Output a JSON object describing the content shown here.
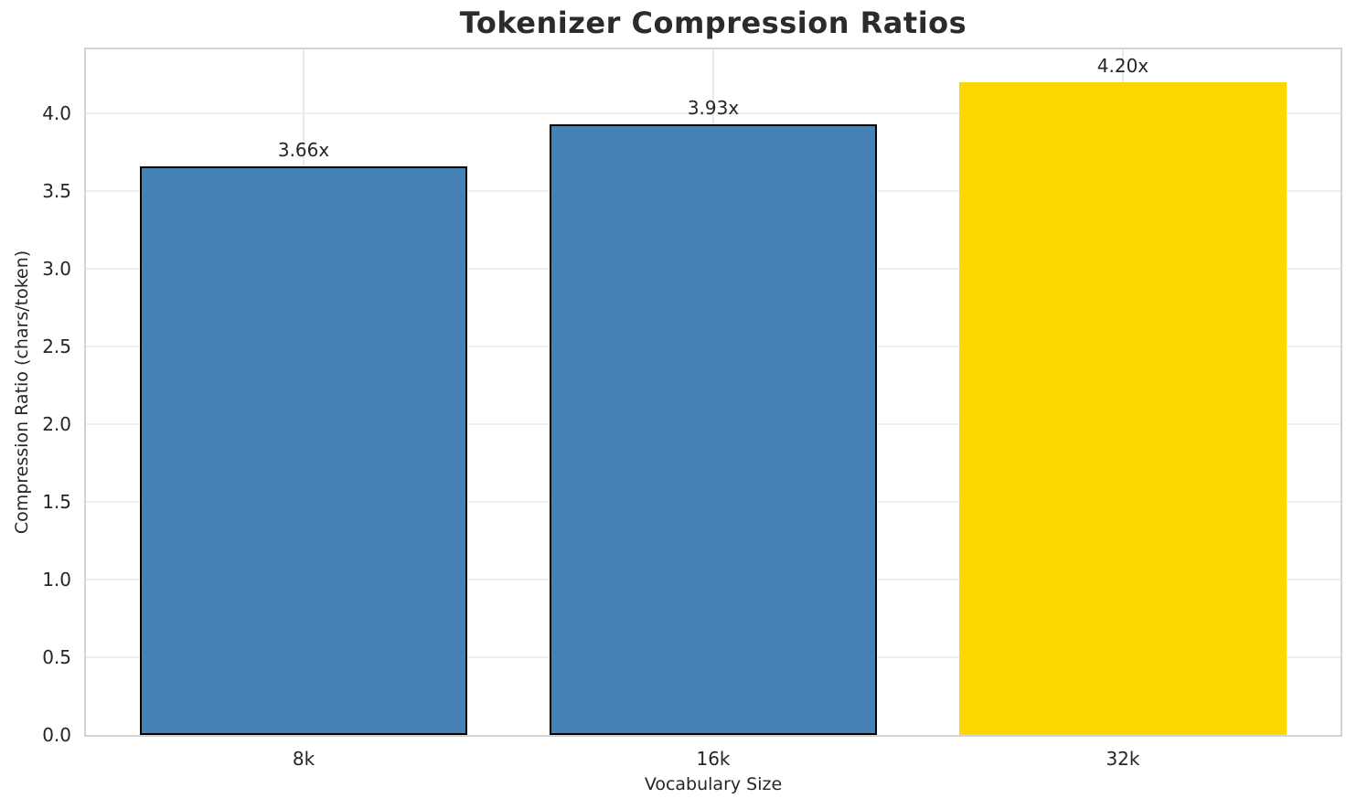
{
  "chart_data": {
    "type": "bar",
    "title": "Tokenizer Compression Ratios",
    "xlabel": "Vocabulary Size",
    "ylabel": "Compression Ratio (chars/token)",
    "categories": [
      "8k",
      "16k",
      "32k"
    ],
    "values": [
      3.66,
      3.93,
      4.2
    ],
    "bar_labels": [
      "3.66x",
      "3.93x",
      "4.20x"
    ],
    "bar_colors": [
      "#4682B4",
      "#4682B4",
      "#FFD700"
    ],
    "bar_edge_colors": [
      "#000000",
      "#000000",
      null
    ],
    "yticks": [
      0.0,
      0.5,
      1.0,
      1.5,
      2.0,
      2.5,
      3.0,
      3.5,
      4.0
    ],
    "ytick_labels": [
      "0.0",
      "0.5",
      "1.0",
      "1.5",
      "2.0",
      "2.5",
      "3.0",
      "3.5",
      "4.0"
    ],
    "ylim": [
      0,
      4.41
    ],
    "grid": true,
    "legend": null
  }
}
